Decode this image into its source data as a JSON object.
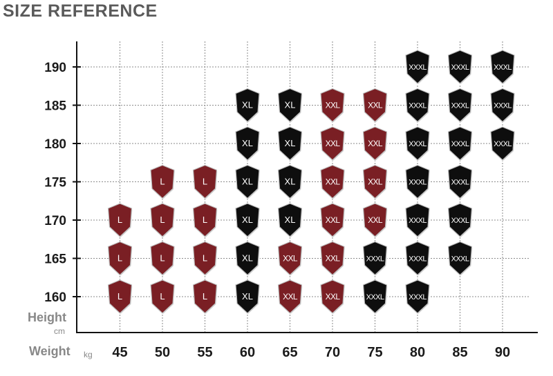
{
  "title": "SIZE REFERENCE",
  "chart_data": {
    "type": "table",
    "x_label": "Weight",
    "x_unit": "kg",
    "y_label": "Height",
    "y_unit": "cm",
    "x": [
      45,
      50,
      55,
      60,
      65,
      70,
      75,
      80,
      85,
      90
    ],
    "y": [
      160,
      165,
      170,
      175,
      180,
      185,
      190
    ],
    "grid": true,
    "colors": {
      "L": "#7a1f24",
      "XL": "#0e0e0e",
      "XXL": "#7a1f24",
      "XXXL": "#0e0e0e"
    },
    "cells": [
      {
        "weight": 45,
        "height": 160,
        "size": "L"
      },
      {
        "weight": 45,
        "height": 165,
        "size": "L"
      },
      {
        "weight": 45,
        "height": 170,
        "size": "L"
      },
      {
        "weight": 50,
        "height": 160,
        "size": "L"
      },
      {
        "weight": 50,
        "height": 165,
        "size": "L"
      },
      {
        "weight": 50,
        "height": 170,
        "size": "L"
      },
      {
        "weight": 50,
        "height": 175,
        "size": "L"
      },
      {
        "weight": 55,
        "height": 160,
        "size": "L"
      },
      {
        "weight": 55,
        "height": 165,
        "size": "L"
      },
      {
        "weight": 55,
        "height": 170,
        "size": "L"
      },
      {
        "weight": 55,
        "height": 175,
        "size": "L"
      },
      {
        "weight": 60,
        "height": 160,
        "size": "XL"
      },
      {
        "weight": 60,
        "height": 165,
        "size": "XL"
      },
      {
        "weight": 60,
        "height": 170,
        "size": "XL"
      },
      {
        "weight": 60,
        "height": 175,
        "size": "XL"
      },
      {
        "weight": 60,
        "height": 180,
        "size": "XL"
      },
      {
        "weight": 60,
        "height": 185,
        "size": "XL"
      },
      {
        "weight": 65,
        "height": 160,
        "size": "XXL"
      },
      {
        "weight": 65,
        "height": 165,
        "size": "XXL"
      },
      {
        "weight": 65,
        "height": 170,
        "size": "XL"
      },
      {
        "weight": 65,
        "height": 175,
        "size": "XL"
      },
      {
        "weight": 65,
        "height": 180,
        "size": "XL"
      },
      {
        "weight": 65,
        "height": 185,
        "size": "XL"
      },
      {
        "weight": 70,
        "height": 160,
        "size": "XXL"
      },
      {
        "weight": 70,
        "height": 165,
        "size": "XXL"
      },
      {
        "weight": 70,
        "height": 170,
        "size": "XXL"
      },
      {
        "weight": 70,
        "height": 175,
        "size": "XXL"
      },
      {
        "weight": 70,
        "height": 180,
        "size": "XXL"
      },
      {
        "weight": 70,
        "height": 185,
        "size": "XXL"
      },
      {
        "weight": 75,
        "height": 160,
        "size": "XXXL"
      },
      {
        "weight": 75,
        "height": 165,
        "size": "XXXL"
      },
      {
        "weight": 75,
        "height": 170,
        "size": "XXL"
      },
      {
        "weight": 75,
        "height": 175,
        "size": "XXL"
      },
      {
        "weight": 75,
        "height": 180,
        "size": "XXL"
      },
      {
        "weight": 75,
        "height": 185,
        "size": "XXL"
      },
      {
        "weight": 80,
        "height": 160,
        "size": "XXXL"
      },
      {
        "weight": 80,
        "height": 165,
        "size": "XXXL"
      },
      {
        "weight": 80,
        "height": 170,
        "size": "XXXL"
      },
      {
        "weight": 80,
        "height": 175,
        "size": "XXXL"
      },
      {
        "weight": 80,
        "height": 180,
        "size": "XXXL"
      },
      {
        "weight": 80,
        "height": 185,
        "size": "XXXL"
      },
      {
        "weight": 80,
        "height": 190,
        "size": "XXXL"
      },
      {
        "weight": 85,
        "height": 165,
        "size": "XXXL"
      },
      {
        "weight": 85,
        "height": 170,
        "size": "XXXL"
      },
      {
        "weight": 85,
        "height": 175,
        "size": "XXXL"
      },
      {
        "weight": 85,
        "height": 180,
        "size": "XXXL"
      },
      {
        "weight": 85,
        "height": 185,
        "size": "XXXL"
      },
      {
        "weight": 85,
        "height": 190,
        "size": "XXXL"
      },
      {
        "weight": 90,
        "height": 180,
        "size": "XXXL"
      },
      {
        "weight": 90,
        "height": 185,
        "size": "XXXL"
      },
      {
        "weight": 90,
        "height": 190,
        "size": "XXXL"
      }
    ]
  }
}
